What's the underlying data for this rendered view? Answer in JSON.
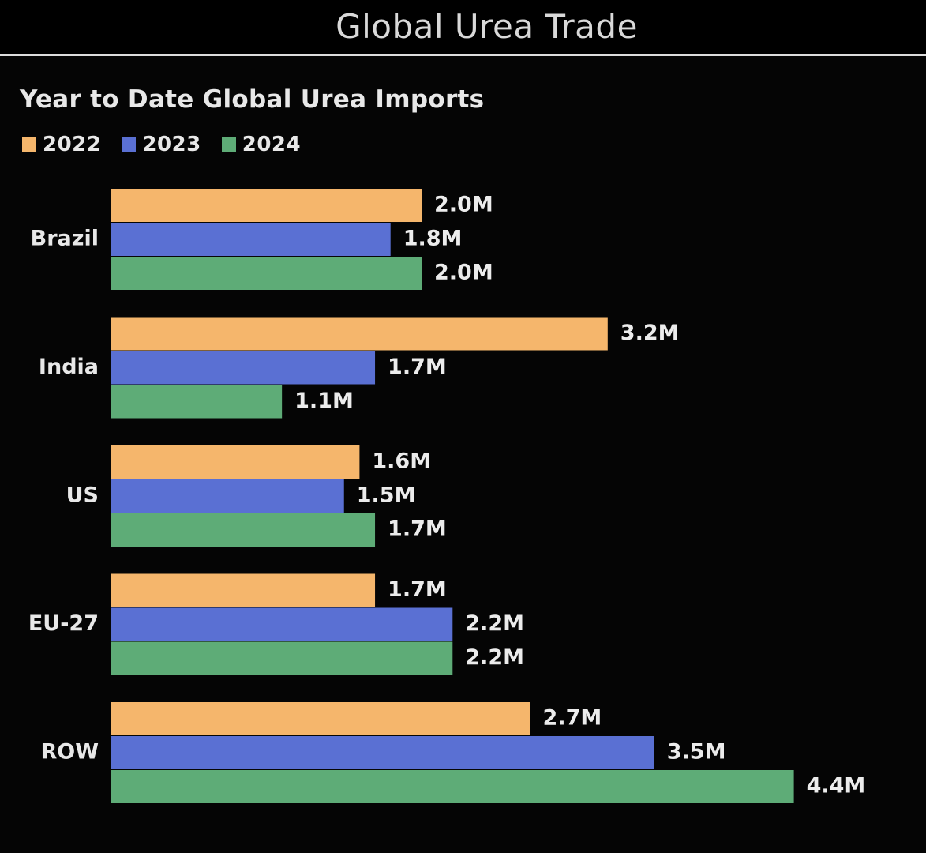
{
  "header": {
    "title": "Global Urea Trade"
  },
  "chart_data": {
    "type": "bar",
    "orientation": "horizontal",
    "title": "Year to Date Global Urea Imports",
    "categories": [
      "Brazil",
      "India",
      "US",
      "EU-27",
      "ROW"
    ],
    "series": [
      {
        "name": "2022",
        "color": "#f5b66c",
        "values": [
          2.0,
          3.2,
          1.6,
          1.7,
          2.7
        ],
        "labels": [
          "2.0M",
          "3.2M",
          "1.6M",
          "1.7M",
          "2.7M"
        ]
      },
      {
        "name": "2023",
        "color": "#5a70d3",
        "values": [
          1.8,
          1.7,
          1.5,
          2.2,
          3.5
        ],
        "labels": [
          "1.8M",
          "1.7M",
          "1.5M",
          "2.2M",
          "3.5M"
        ]
      },
      {
        "name": "2024",
        "color": "#5eac77",
        "values": [
          2.0,
          1.1,
          1.7,
          2.2,
          4.4
        ],
        "labels": [
          "2.0M",
          "1.1M",
          "1.7M",
          "2.2M",
          "4.4M"
        ]
      }
    ],
    "unit": "M",
    "legend_position": "top-left",
    "grid": false
  }
}
